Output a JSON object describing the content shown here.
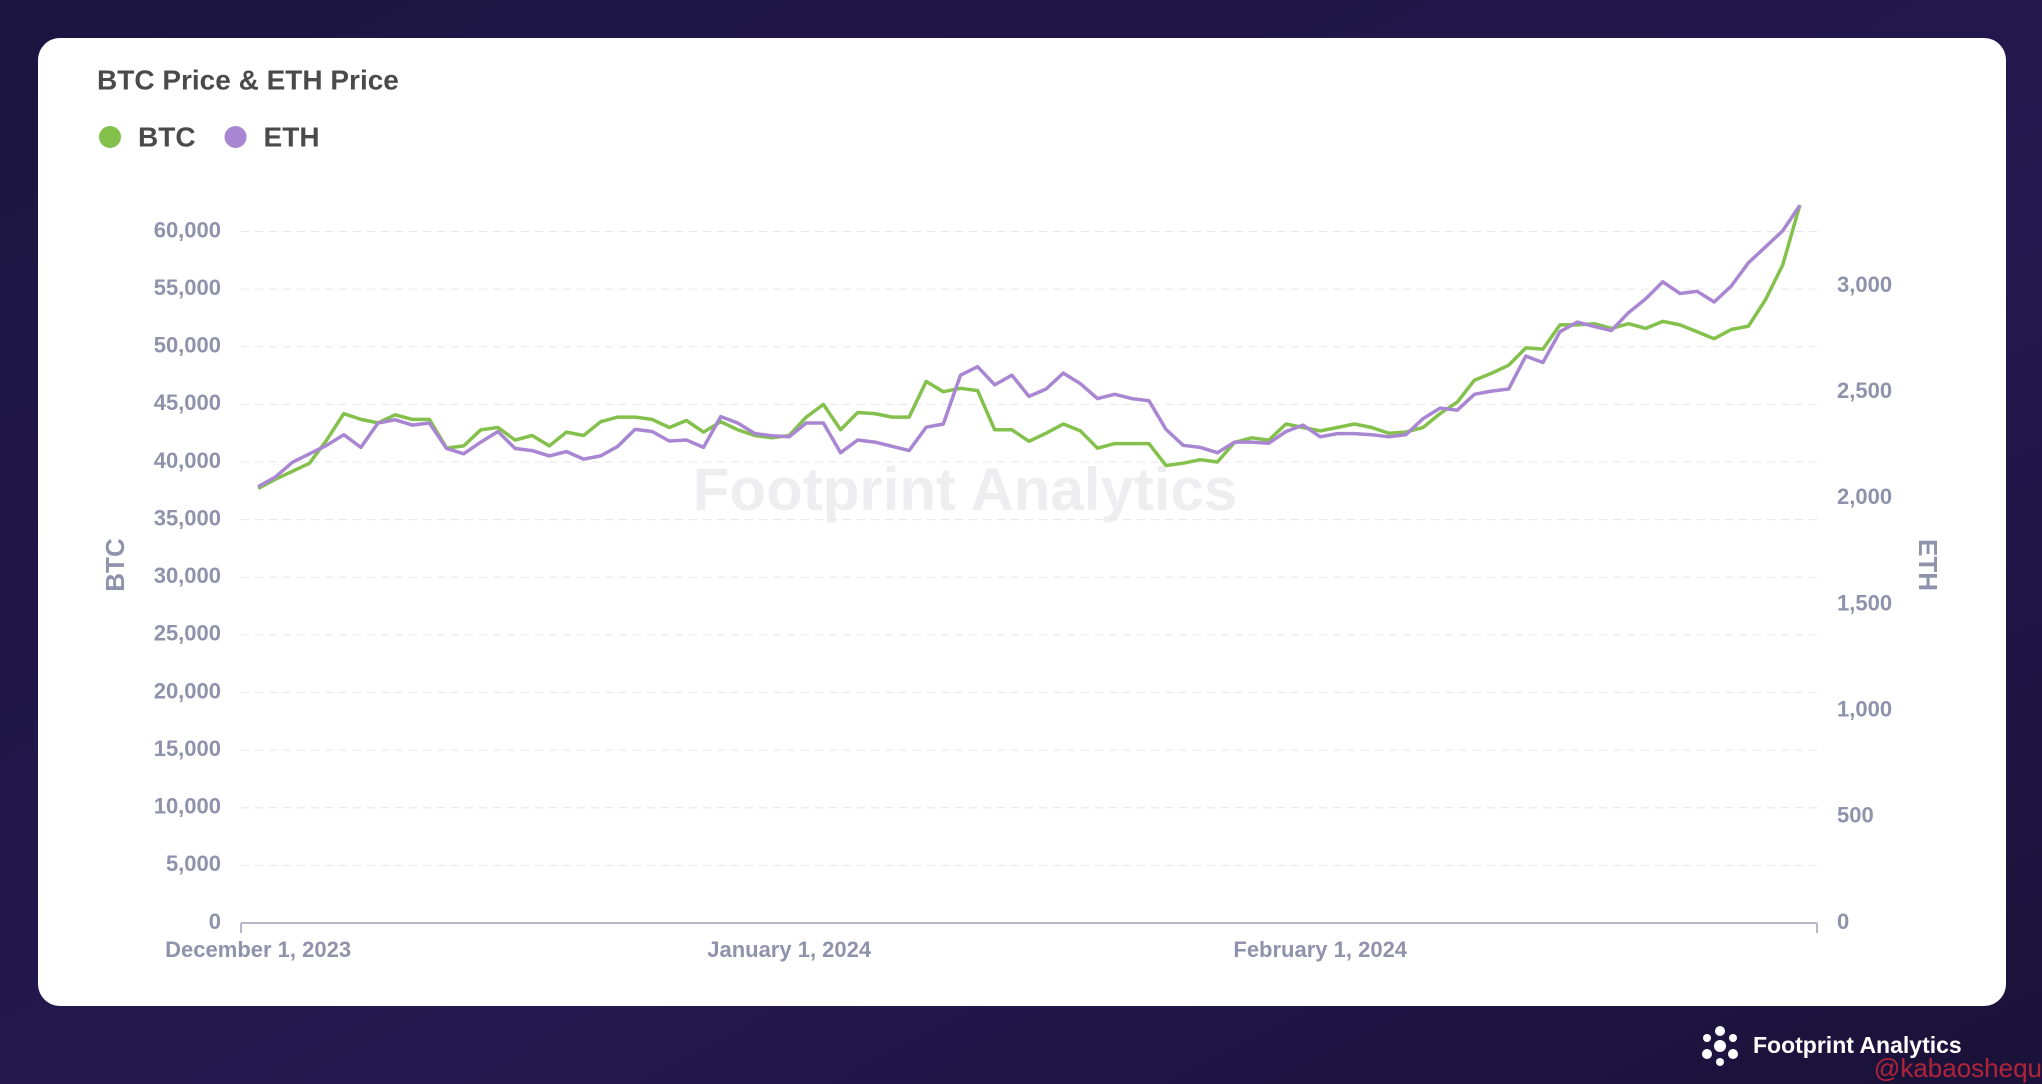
{
  "chart_data": {
    "type": "line",
    "title": "BTC Price & ETH Price",
    "y_label": "BTC",
    "y2_label": "ETH",
    "watermark": "Footprint Analytics",
    "brand": "Footprint Analytics",
    "credit": "@kabaoshequ",
    "x": [
      "2023-12-01",
      "2023-12-02",
      "2023-12-03",
      "2023-12-04",
      "2023-12-05",
      "2023-12-06",
      "2023-12-07",
      "2023-12-08",
      "2023-12-09",
      "2023-12-10",
      "2023-12-11",
      "2023-12-12",
      "2023-12-13",
      "2023-12-14",
      "2023-12-15",
      "2023-12-16",
      "2023-12-17",
      "2023-12-18",
      "2023-12-19",
      "2023-12-20",
      "2023-12-21",
      "2023-12-22",
      "2023-12-23",
      "2023-12-24",
      "2023-12-25",
      "2023-12-26",
      "2023-12-27",
      "2023-12-28",
      "2023-12-29",
      "2023-12-30",
      "2023-12-31",
      "2024-01-01",
      "2024-01-02",
      "2024-01-03",
      "2024-01-04",
      "2024-01-05",
      "2024-01-06",
      "2024-01-07",
      "2024-01-08",
      "2024-01-09",
      "2024-01-10",
      "2024-01-11",
      "2024-01-12",
      "2024-01-13",
      "2024-01-14",
      "2024-01-15",
      "2024-01-16",
      "2024-01-17",
      "2024-01-18",
      "2024-01-19",
      "2024-01-20",
      "2024-01-21",
      "2024-01-22",
      "2024-01-23",
      "2024-01-24",
      "2024-01-25",
      "2024-01-26",
      "2024-01-27",
      "2024-01-28",
      "2024-01-29",
      "2024-01-30",
      "2024-01-31",
      "2024-02-01",
      "2024-02-02",
      "2024-02-03",
      "2024-02-04",
      "2024-02-05",
      "2024-02-06",
      "2024-02-07",
      "2024-02-08",
      "2024-02-09",
      "2024-02-10",
      "2024-02-11",
      "2024-02-12",
      "2024-02-13",
      "2024-02-14",
      "2024-02-15",
      "2024-02-16",
      "2024-02-17",
      "2024-02-18",
      "2024-02-19",
      "2024-02-20",
      "2024-02-21",
      "2024-02-22",
      "2024-02-23",
      "2024-02-24",
      "2024-02-25",
      "2024-02-26",
      "2024-02-27",
      "2024-02-28",
      "2024-02-29"
    ],
    "series": [
      {
        "name": "BTC",
        "color": "#84c14c",
        "values": [
          37700,
          38500,
          39200,
          39900,
          41900,
          44200,
          43700,
          43400,
          44100,
          43700,
          43700,
          41200,
          41400,
          42800,
          43000,
          41900,
          42300,
          41400,
          42600,
          42300,
          43500,
          43900,
          43900,
          43700,
          43000,
          43600,
          42600,
          43500,
          42800,
          42300,
          42100,
          42300,
          43900,
          45000,
          42800,
          44300,
          44200,
          43900,
          43900,
          47000,
          46100,
          46400,
          46200,
          42800,
          42800,
          41800,
          42500,
          43300,
          42700,
          41200,
          41600,
          41600,
          41600,
          39700,
          39900,
          40200,
          40000,
          41700,
          42100,
          41900,
          43300,
          43000,
          42700,
          43000,
          43300,
          43000,
          42500,
          42600,
          43000,
          44200,
          45200,
          47100,
          47700,
          48400,
          49900,
          49800,
          51900,
          51900,
          52000,
          51600,
          52000,
          51600,
          52200,
          51900,
          51300,
          50700,
          51500,
          51800,
          54100,
          57100,
          62300
        ]
      },
      {
        "name": "ETH",
        "color": "#a886d2",
        "axis": "y2",
        "values": [
          2055,
          2100,
          2170,
          2210,
          2250,
          2300,
          2240,
          2355,
          2370,
          2345,
          2355,
          2235,
          2210,
          2265,
          2315,
          2235,
          2225,
          2200,
          2220,
          2185,
          2200,
          2245,
          2325,
          2315,
          2270,
          2275,
          2240,
          2385,
          2355,
          2305,
          2295,
          2290,
          2355,
          2355,
          2215,
          2275,
          2265,
          2245,
          2225,
          2335,
          2350,
          2580,
          2620,
          2535,
          2580,
          2480,
          2515,
          2590,
          2540,
          2470,
          2490,
          2470,
          2460,
          2325,
          2250,
          2240,
          2215,
          2265,
          2265,
          2260,
          2315,
          2345,
          2290,
          2305,
          2305,
          2300,
          2290,
          2300,
          2375,
          2425,
          2415,
          2490,
          2505,
          2515,
          2670,
          2640,
          2785,
          2830,
          2810,
          2790,
          2875,
          2940,
          3020,
          2965,
          2975,
          2925,
          3000,
          3110,
          3185,
          3260,
          3380
        ]
      }
    ],
    "xlim": [
      "2023-11-30",
      "2024-03-01"
    ],
    "xticks": [
      {
        "value": "2023-12-01",
        "label": "December 1, 2023"
      },
      {
        "value": "2024-01-01",
        "label": "January 1, 2024"
      },
      {
        "value": "2024-02-01",
        "label": "February 1, 2024"
      }
    ],
    "ylim": [
      0,
      64300
    ],
    "yticks": [
      0,
      {
        "value": 5000,
        "label": "5,000"
      },
      {
        "value": 10000,
        "label": "10,000"
      },
      {
        "value": 15000,
        "label": "15,000"
      },
      {
        "value": 20000,
        "label": "20,000"
      },
      {
        "value": 25000,
        "label": "25,000"
      },
      {
        "value": 30000,
        "label": "30,000"
      },
      {
        "value": 35000,
        "label": "35,000"
      },
      {
        "value": 40000,
        "label": "40,000"
      },
      {
        "value": 45000,
        "label": "45,000"
      },
      {
        "value": 50000,
        "label": "50,000"
      },
      {
        "value": 55000,
        "label": "55,000"
      },
      {
        "value": 60000,
        "label": "60,000"
      }
    ],
    "y2lim": [
      0,
      3490
    ],
    "y2ticks": [
      0,
      500,
      {
        "value": 1000,
        "label": "1,000"
      },
      {
        "value": 1500,
        "label": "1,500"
      },
      {
        "value": 2000,
        "label": "2,000"
      },
      {
        "value": 2500,
        "label": "2,500"
      },
      {
        "value": 3000,
        "label": "3,000"
      }
    ],
    "grid": true,
    "legend": "top-left"
  }
}
